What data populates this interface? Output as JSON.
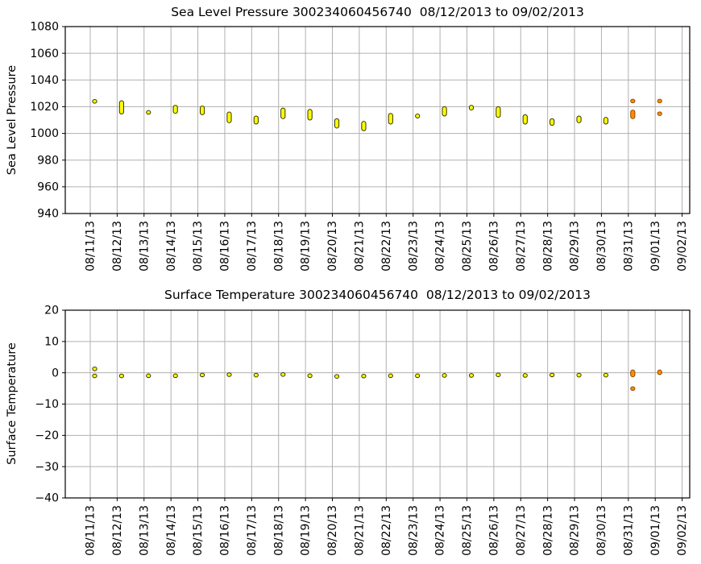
{
  "style": {
    "background": "#ffffff",
    "grid_color": "#b0b0b0",
    "spine_color": "#000000",
    "text_color": "#000000",
    "marker_normal_fill": "#ffff00",
    "marker_normal_edge": "#333300",
    "marker_flagged_fill": "#ff8c00",
    "marker_flagged_edge": "#8f4700"
  },
  "chart_data": [
    {
      "type": "scatter",
      "id": "sea-level-pressure",
      "title": "Sea Level Pressure 300234060456740  08/12/2013 to 09/02/2013",
      "ylabel": "Sea Level Pressure",
      "xlabel": "",
      "grid": true,
      "legend": "none",
      "ylim": [
        940,
        1080
      ],
      "ytick_values": [
        1080,
        1060,
        1040,
        1020,
        1000,
        980,
        960,
        940
      ],
      "ytick_labels": [
        "1080",
        "1060",
        "1040",
        "1020",
        "1000",
        "980",
        "960",
        "940"
      ],
      "categories": [
        "08/11/13",
        "08/12/13",
        "08/13/13",
        "08/14/13",
        "08/15/13",
        "08/16/13",
        "08/17/13",
        "08/18/13",
        "08/19/13",
        "08/20/13",
        "08/21/13",
        "08/22/13",
        "08/23/13",
        "08/24/13",
        "08/25/13",
        "08/26/13",
        "08/27/13",
        "08/28/13",
        "08/29/13",
        "08/30/13",
        "08/31/13",
        "09/01/13",
        "09/02/13"
      ],
      "series": [
        {
          "name": "daily-pressure-range-hpa",
          "color": "#ffff00",
          "edge": "#333300",
          "points": [
            [
              0,
              1023,
              1025
            ],
            [
              1,
              1014.5,
              1024.5
            ],
            [
              2,
              1014.5,
              1017
            ],
            [
              3,
              1015,
              1021
            ],
            [
              4,
              1014,
              1020.5
            ],
            [
              5,
              1008,
              1016
            ],
            [
              6,
              1007,
              1013
            ],
            [
              7,
              1011,
              1019
            ],
            [
              8,
              1010,
              1018
            ],
            [
              9,
              1004,
              1011
            ],
            [
              10,
              1002,
              1009
            ],
            [
              11,
              1007,
              1015
            ],
            [
              12,
              1011.5,
              1014.5
            ],
            [
              13,
              1013,
              1020
            ],
            [
              14,
              1017.5,
              1021
            ],
            [
              15,
              1012,
              1020
            ],
            [
              16,
              1007,
              1014
            ],
            [
              17,
              1006,
              1011
            ],
            [
              18,
              1008,
              1013
            ],
            [
              19,
              1007,
              1012
            ]
          ]
        },
        {
          "name": "daily-pressure-range-flagged-hpa",
          "color": "#ff8c00",
          "edge": "#8f4700",
          "points": [
            [
              20,
              1023.5,
              1025
            ],
            [
              20,
              1011,
              1017.5
            ],
            [
              21,
              1023.5,
              1025
            ],
            [
              21,
              1014,
              1015.5
            ]
          ]
        }
      ]
    },
    {
      "type": "scatter",
      "id": "surface-temperature",
      "title": "Surface Temperature 300234060456740  08/12/2013 to 09/02/2013",
      "ylabel": "Surface Temperature",
      "xlabel": "",
      "grid": true,
      "legend": "none",
      "ylim": [
        -40,
        20
      ],
      "ytick_values": [
        20,
        10,
        0,
        -10,
        -20,
        -30,
        -40
      ],
      "ytick_labels": [
        "20",
        "10",
        "0",
        "−10",
        "−20",
        "−30",
        "−40"
      ],
      "categories": [
        "08/11/13",
        "08/12/13",
        "08/13/13",
        "08/14/13",
        "08/15/13",
        "08/16/13",
        "08/17/13",
        "08/18/13",
        "08/19/13",
        "08/20/13",
        "08/21/13",
        "08/22/13",
        "08/23/13",
        "08/24/13",
        "08/25/13",
        "08/26/13",
        "08/27/13",
        "08/28/13",
        "08/29/13",
        "08/30/13",
        "08/31/13",
        "09/01/13",
        "09/02/13"
      ],
      "series": [
        {
          "name": "daily-temperature-range-c",
          "color": "#ffff00",
          "edge": "#333300",
          "points": [
            [
              0,
              0.9,
              1.6
            ],
            [
              0,
              -1.3,
              -0.7
            ],
            [
              1,
              -1.3,
              -0.7
            ],
            [
              2,
              -1.2,
              -0.7
            ],
            [
              3,
              -1.2,
              -0.7
            ],
            [
              4,
              -1.0,
              -0.4
            ],
            [
              5,
              -1.0,
              -0.2
            ],
            [
              6,
              -1.0,
              -0.5
            ],
            [
              7,
              -1.0,
              -0.1
            ],
            [
              8,
              -1.2,
              -0.7
            ],
            [
              9,
              -1.4,
              -0.9
            ],
            [
              10,
              -1.3,
              -0.8
            ],
            [
              11,
              -1.2,
              -0.7
            ],
            [
              12,
              -1.2,
              -0.7
            ],
            [
              13,
              -1.1,
              -0.6
            ],
            [
              14,
              -1.1,
              -0.6
            ],
            [
              15,
              -1.0,
              -0.3
            ],
            [
              16,
              -1.0,
              -0.7
            ],
            [
              17,
              -1.0,
              -0.4
            ],
            [
              18,
              -1.0,
              -0.5
            ],
            [
              19,
              -1.0,
              -0.5
            ]
          ]
        },
        {
          "name": "daily-temperature-range-flagged-c",
          "color": "#ff8c00",
          "edge": "#8f4700",
          "points": [
            [
              20,
              -1.3,
              0.9
            ],
            [
              20,
              -5.3,
              -4.8
            ],
            [
              21,
              -0.6,
              0.9
            ]
          ]
        }
      ]
    }
  ]
}
